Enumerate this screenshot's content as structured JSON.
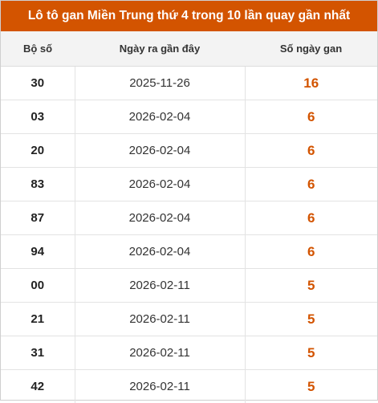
{
  "title": "Lô tô gan Miền Trung thứ 4 trong 10 lần quay gần nhất",
  "accent_color": "#d35400",
  "columns": [
    "Bộ số",
    "Ngày ra gần đây",
    "Số ngày gan"
  ],
  "rows": [
    {
      "number": "30",
      "last_date": "2025-11-26",
      "days": "16"
    },
    {
      "number": "03",
      "last_date": "2026-02-04",
      "days": "6"
    },
    {
      "number": "20",
      "last_date": "2026-02-04",
      "days": "6"
    },
    {
      "number": "83",
      "last_date": "2026-02-04",
      "days": "6"
    },
    {
      "number": "87",
      "last_date": "2026-02-04",
      "days": "6"
    },
    {
      "number": "94",
      "last_date": "2026-02-04",
      "days": "6"
    },
    {
      "number": "00",
      "last_date": "2026-02-11",
      "days": "5"
    },
    {
      "number": "21",
      "last_date": "2026-02-11",
      "days": "5"
    },
    {
      "number": "31",
      "last_date": "2026-02-11",
      "days": "5"
    },
    {
      "number": "42",
      "last_date": "2026-02-11",
      "days": "5"
    }
  ]
}
